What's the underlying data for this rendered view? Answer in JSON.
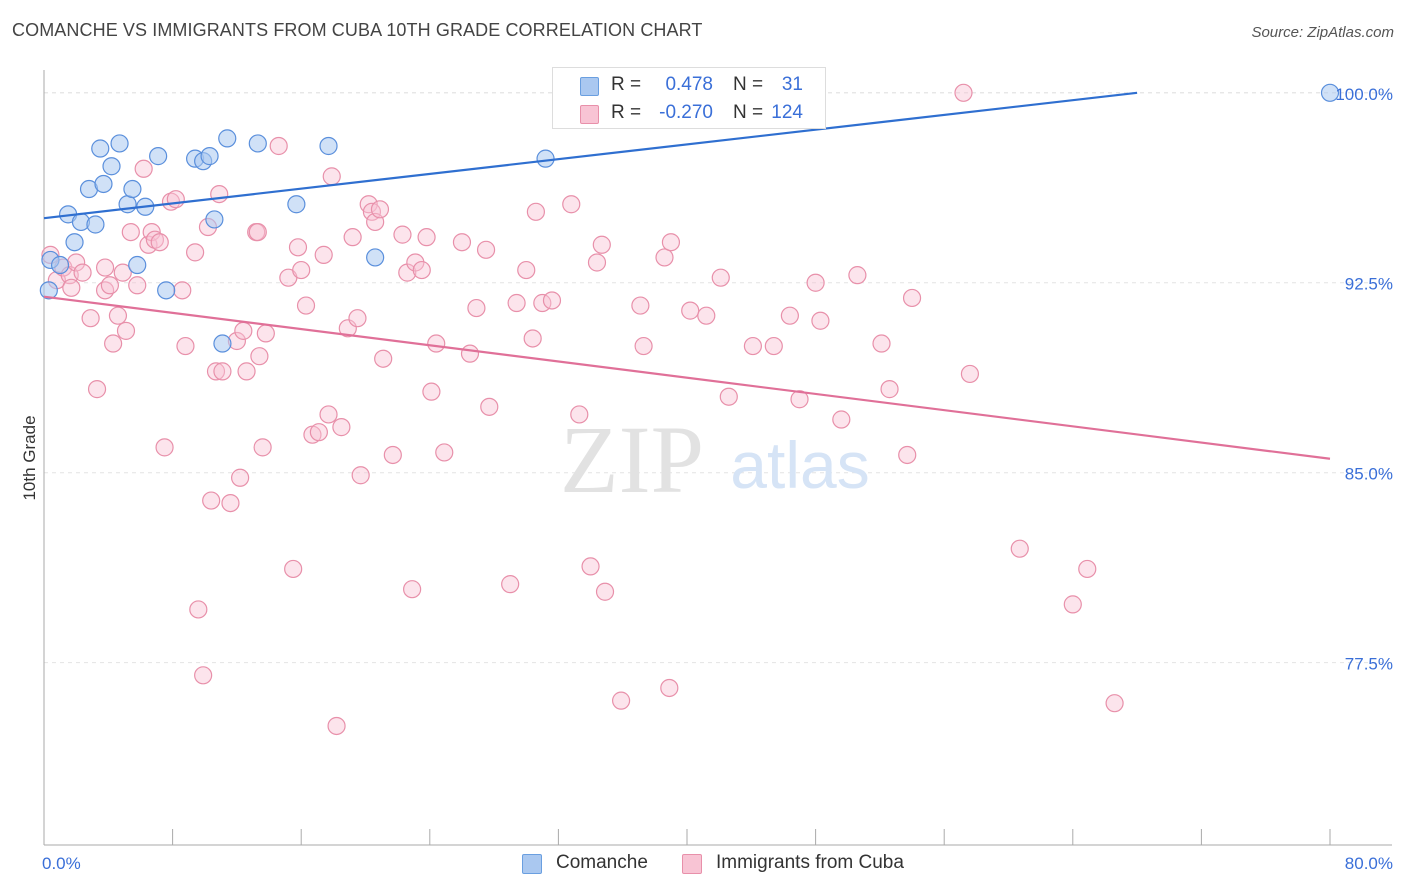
{
  "title": "COMANCHE VS IMMIGRANTS FROM CUBA 10TH GRADE CORRELATION CHART",
  "source": "Source: ZipAtlas.com",
  "watermark": {
    "zip": "ZIP",
    "atlas": "atlas"
  },
  "legend": {
    "rows": [
      {
        "r_label": "R =",
        "r_value": "0.478",
        "n_label": "N =",
        "n_value": "31",
        "color": "#aac8f0",
        "border": "#6a9fe0"
      },
      {
        "r_label": "R =",
        "r_value": "-0.270",
        "n_label": "N = ",
        "n_value": "124",
        "color": "#f8c4d4",
        "border": "#e890aa"
      }
    ]
  },
  "colors": {
    "blue_fill": "#aac8f0",
    "blue_stroke": "#5a8fdc",
    "blue_line": "#2f6fd0",
    "pink_fill": "#f8c4d4",
    "pink_stroke": "#e890aa",
    "pink_line": "#e07098",
    "tick_text": "#3a6fd8",
    "grid": "#e4e4e4"
  },
  "chart_data": {
    "type": "scatter",
    "title": "COMANCHE VS IMMIGRANTS FROM CUBA 10TH GRADE CORRELATION CHART",
    "xlabel": "",
    "ylabel": "10th Grade",
    "xlim": [
      0,
      80
    ],
    "ylim": [
      70.3,
      100.9
    ],
    "x_tick_labels": [
      {
        "value": 0,
        "label": "0.0%"
      },
      {
        "value": 80,
        "label": "80.0%"
      }
    ],
    "y_ticks": [
      {
        "value": 100,
        "label": "100.0%"
      },
      {
        "value": 92.5,
        "label": "92.5%"
      },
      {
        "value": 85,
        "label": "85.0%"
      },
      {
        "value": 77.5,
        "label": "77.5%"
      }
    ],
    "grid": "horizontal dashed",
    "legend_placement": "bottom-center",
    "series": [
      {
        "name": "Comanche",
        "trend": {
          "x": [
            0,
            68
          ],
          "y": [
            95.05,
            100.0
          ]
        },
        "points": [
          [
            0.3,
            92.2
          ],
          [
            0.4,
            93.4
          ],
          [
            1.0,
            93.2
          ],
          [
            1.5,
            95.2
          ],
          [
            1.9,
            94.1
          ],
          [
            2.3,
            94.9
          ],
          [
            2.8,
            96.2
          ],
          [
            3.2,
            94.8
          ],
          [
            3.5,
            97.8
          ],
          [
            3.7,
            96.4
          ],
          [
            4.2,
            97.1
          ],
          [
            4.7,
            98.0
          ],
          [
            5.2,
            95.6
          ],
          [
            5.5,
            96.2
          ],
          [
            5.8,
            93.2
          ],
          [
            6.3,
            95.5
          ],
          [
            7.1,
            97.5
          ],
          [
            7.6,
            92.2
          ],
          [
            9.4,
            97.4
          ],
          [
            9.9,
            97.3
          ],
          [
            10.3,
            97.5
          ],
          [
            10.6,
            95.0
          ],
          [
            11.1,
            90.1
          ],
          [
            11.4,
            98.2
          ],
          [
            13.3,
            98.0
          ],
          [
            15.7,
            95.6
          ],
          [
            17.7,
            97.9
          ],
          [
            20.6,
            93.5
          ],
          [
            31.2,
            97.4
          ],
          [
            33.0,
            100.0
          ],
          [
            80.0,
            100.0
          ]
        ]
      },
      {
        "name": "Immigrants from Cuba",
        "trend": {
          "x": [
            0,
            80
          ],
          "y": [
            91.95,
            85.55
          ]
        },
        "points": [
          [
            0.4,
            93.6
          ],
          [
            0.8,
            92.6
          ],
          [
            1.2,
            93.1
          ],
          [
            1.6,
            92.8
          ],
          [
            1.7,
            92.3
          ],
          [
            2.0,
            93.3
          ],
          [
            2.4,
            92.9
          ],
          [
            2.9,
            91.1
          ],
          [
            3.3,
            88.3
          ],
          [
            3.8,
            92.2
          ],
          [
            4.1,
            92.4
          ],
          [
            4.3,
            90.1
          ],
          [
            4.6,
            91.2
          ],
          [
            4.9,
            92.9
          ],
          [
            5.1,
            90.6
          ],
          [
            5.4,
            94.5
          ],
          [
            5.8,
            92.4
          ],
          [
            6.2,
            97.0
          ],
          [
            6.5,
            94.0
          ],
          [
            6.7,
            94.5
          ],
          [
            6.9,
            94.2
          ],
          [
            7.2,
            94.1
          ],
          [
            7.5,
            86.0
          ],
          [
            7.9,
            95.7
          ],
          [
            8.2,
            95.8
          ],
          [
            8.6,
            92.2
          ],
          [
            8.8,
            90.0
          ],
          [
            9.4,
            93.7
          ],
          [
            9.6,
            79.6
          ],
          [
            9.9,
            77.0
          ],
          [
            10.2,
            94.7
          ],
          [
            10.4,
            83.9
          ],
          [
            10.7,
            89.0
          ],
          [
            10.9,
            96.0
          ],
          [
            11.1,
            89.0
          ],
          [
            11.6,
            83.8
          ],
          [
            12.0,
            90.2
          ],
          [
            12.2,
            84.8
          ],
          [
            12.4,
            90.6
          ],
          [
            12.6,
            89.0
          ],
          [
            13.2,
            94.5
          ],
          [
            13.4,
            89.6
          ],
          [
            13.6,
            86.0
          ],
          [
            13.8,
            90.5
          ],
          [
            14.6,
            97.9
          ],
          [
            15.2,
            92.7
          ],
          [
            15.5,
            81.2
          ],
          [
            15.8,
            93.9
          ],
          [
            16.0,
            93.0
          ],
          [
            16.3,
            91.6
          ],
          [
            16.7,
            86.5
          ],
          [
            17.1,
            86.6
          ],
          [
            17.4,
            93.6
          ],
          [
            17.7,
            87.3
          ],
          [
            17.9,
            96.7
          ],
          [
            18.2,
            75.0
          ],
          [
            18.5,
            86.8
          ],
          [
            18.9,
            90.7
          ],
          [
            19.2,
            94.3
          ],
          [
            19.5,
            91.1
          ],
          [
            19.7,
            84.9
          ],
          [
            20.2,
            95.6
          ],
          [
            20.4,
            95.3
          ],
          [
            20.6,
            94.9
          ],
          [
            20.9,
            95.4
          ],
          [
            21.1,
            89.5
          ],
          [
            21.7,
            85.7
          ],
          [
            22.3,
            94.4
          ],
          [
            22.6,
            92.9
          ],
          [
            22.9,
            80.4
          ],
          [
            23.1,
            93.3
          ],
          [
            23.5,
            93.0
          ],
          [
            23.8,
            94.3
          ],
          [
            24.1,
            88.2
          ],
          [
            24.4,
            90.1
          ],
          [
            24.9,
            85.8
          ],
          [
            26.0,
            94.1
          ],
          [
            26.5,
            89.7
          ],
          [
            26.9,
            91.5
          ],
          [
            27.5,
            93.8
          ],
          [
            27.7,
            87.6
          ],
          [
            29.0,
            80.6
          ],
          [
            29.4,
            91.7
          ],
          [
            30.0,
            93.0
          ],
          [
            30.4,
            90.3
          ],
          [
            30.6,
            95.3
          ],
          [
            31.0,
            91.7
          ],
          [
            31.6,
            91.8
          ],
          [
            32.8,
            95.6
          ],
          [
            33.3,
            87.3
          ],
          [
            34.0,
            81.3
          ],
          [
            34.4,
            93.3
          ],
          [
            34.7,
            94.0
          ],
          [
            34.9,
            80.3
          ],
          [
            35.9,
            76.0
          ],
          [
            37.1,
            91.6
          ],
          [
            37.3,
            90.0
          ],
          [
            38.6,
            93.5
          ],
          [
            38.9,
            76.5
          ],
          [
            39.0,
            94.1
          ],
          [
            40.2,
            91.4
          ],
          [
            41.2,
            91.2
          ],
          [
            42.1,
            92.7
          ],
          [
            42.6,
            88.0
          ],
          [
            44.1,
            90.0
          ],
          [
            45.4,
            90.0
          ],
          [
            46.4,
            91.2
          ],
          [
            47.0,
            87.9
          ],
          [
            48.0,
            92.5
          ],
          [
            48.3,
            91.0
          ],
          [
            49.6,
            87.1
          ],
          [
            50.6,
            92.8
          ],
          [
            52.1,
            90.1
          ],
          [
            52.6,
            88.3
          ],
          [
            53.7,
            85.7
          ],
          [
            54.0,
            91.9
          ],
          [
            57.2,
            100.0
          ],
          [
            57.6,
            88.9
          ],
          [
            60.7,
            82.0
          ],
          [
            64.0,
            79.8
          ],
          [
            64.9,
            81.2
          ],
          [
            66.6,
            75.9
          ],
          [
            13.3,
            94.5
          ],
          [
            3.8,
            93.1
          ]
        ]
      }
    ]
  },
  "bottom_legend": [
    {
      "label": "Comanche"
    },
    {
      "label": "Immigrants from Cuba"
    }
  ]
}
